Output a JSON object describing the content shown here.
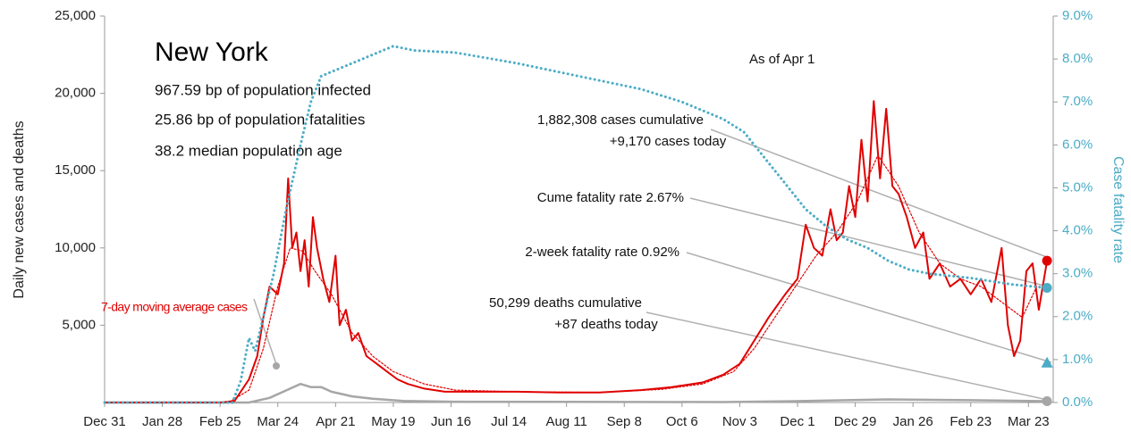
{
  "chart_data": {
    "type": "line",
    "title": "New York",
    "stats": [
      "967.59 bp of population infected",
      "25.86 bp of population fatalities",
      "38.2 median population age"
    ],
    "ylabel": "Daily new cases and deaths",
    "y2label": "Case fatality rate",
    "annotations": [
      {
        "lines": [
          "As of Apr 1"
        ]
      },
      {
        "lines": [
          "1,882,308 cases cumulative",
          "+9,170 cases today"
        ]
      },
      {
        "lines": [
          "Cume fatality rate 2.67%"
        ]
      },
      {
        "lines": [
          "2-week fatality rate 0.92%"
        ]
      },
      {
        "lines": [
          "50,299 deaths cumulative",
          "+87 deaths today"
        ]
      }
    ],
    "xlim": [
      0,
      460
    ],
    "xticks": [
      {
        "value": 0,
        "label": "Dec 31"
      },
      {
        "value": 28,
        "label": "Jan 28"
      },
      {
        "value": 56,
        "label": "Feb 25"
      },
      {
        "value": 84,
        "label": "Mar 24"
      },
      {
        "value": 112,
        "label": "Apr 21"
      },
      {
        "value": 140,
        "label": "May 19"
      },
      {
        "value": 168,
        "label": "Jun 16"
      },
      {
        "value": 196,
        "label": "Jul 14"
      },
      {
        "value": 224,
        "label": "Aug 11"
      },
      {
        "value": 252,
        "label": "Sep 8"
      },
      {
        "value": 280,
        "label": "Oct 6"
      },
      {
        "value": 308,
        "label": "Nov 3"
      },
      {
        "value": 336,
        "label": "Dec 1"
      },
      {
        "value": 364,
        "label": "Dec 29"
      },
      {
        "value": 392,
        "label": "Jan 26"
      },
      {
        "value": 420,
        "label": "Feb 23"
      },
      {
        "value": 448,
        "label": "Mar 23"
      }
    ],
    "ylim": [
      0,
      25000
    ],
    "yticks": [
      {
        "value": 5000,
        "label": "5,000"
      },
      {
        "value": 10000,
        "label": "10,000"
      },
      {
        "value": 15000,
        "label": "15,000"
      },
      {
        "value": 20000,
        "label": "20,000"
      },
      {
        "value": 25000,
        "label": "25,000"
      }
    ],
    "y2lim": [
      0,
      9
    ],
    "y2ticks": [
      {
        "value": 0,
        "label": "0.0%"
      },
      {
        "value": 1,
        "label": "1.0%"
      },
      {
        "value": 2,
        "label": "2.0%"
      },
      {
        "value": 3,
        "label": "3.0%"
      },
      {
        "value": 4,
        "label": "4.0%"
      },
      {
        "value": 5,
        "label": "5.0%"
      },
      {
        "value": 6,
        "label": "6.0%"
      },
      {
        "value": 7,
        "label": "7.0%"
      },
      {
        "value": 8,
        "label": "8.0%"
      },
      {
        "value": 9,
        "label": "9.0%"
      }
    ],
    "series": [
      {
        "color": "#a6a6a6",
        "style": "solid",
        "width": 2.5,
        "axis": "y",
        "x": [
          0,
          70,
          80,
          90,
          95,
          100,
          105,
          110,
          120,
          130,
          145,
          170,
          300,
          340,
          380,
          420,
          457
        ],
        "values": [
          0,
          0,
          300,
          900,
          1200,
          1000,
          1000,
          700,
          400,
          250,
          100,
          50,
          30,
          100,
          200,
          150,
          87
        ],
        "end_marker": "circle"
      },
      {
        "name": "7-day moving average cases",
        "color": "#e00000",
        "style": "dotted",
        "width": 1.2,
        "axis": "y",
        "x": [
          0,
          60,
          70,
          77,
          84,
          90,
          96,
          102,
          110,
          120,
          130,
          140,
          155,
          170,
          200,
          240,
          270,
          290,
          305,
          315,
          325,
          335,
          345,
          355,
          365,
          375,
          385,
          395,
          405,
          415,
          425,
          435,
          445,
          452
        ],
        "values": [
          0,
          0,
          800,
          3500,
          7500,
          10000,
          9800,
          8500,
          7000,
          4500,
          3000,
          2000,
          1200,
          800,
          700,
          650,
          850,
          1200,
          2000,
          3500,
          5500,
          7500,
          9500,
          11000,
          13000,
          16000,
          14000,
          11000,
          9000,
          8000,
          7500,
          6500,
          5500,
          7500
        ]
      },
      {
        "color": "#e00000",
        "style": "solid",
        "width": 2,
        "axis": "y",
        "x": [
          0,
          56,
          63,
          70,
          74,
          77,
          80,
          84,
          87,
          89,
          91,
          93,
          95,
          97,
          99,
          101,
          103,
          106,
          109,
          112,
          114,
          117,
          120,
          123,
          127,
          132,
          137,
          142,
          147,
          155,
          165,
          180,
          200,
          220,
          240,
          260,
          275,
          290,
          300,
          308,
          315,
          322,
          330,
          336,
          340,
          344,
          348,
          352,
          355,
          358,
          361,
          364,
          367,
          370,
          373,
          376,
          379,
          382,
          385,
          389,
          393,
          397,
          400,
          405,
          410,
          415,
          420,
          425,
          430,
          435,
          438,
          441,
          444,
          447,
          450,
          453,
          457
        ],
        "values": [
          0,
          0,
          100,
          1500,
          3000,
          5500,
          7500,
          7000,
          9000,
          14500,
          10000,
          11000,
          8500,
          10500,
          7500,
          12000,
          10000,
          8000,
          6500,
          9500,
          5000,
          6000,
          4000,
          4500,
          3000,
          2500,
          2000,
          1500,
          1200,
          900,
          700,
          700,
          700,
          650,
          650,
          800,
          1000,
          1300,
          1800,
          2500,
          4000,
          5500,
          7000,
          8000,
          11500,
          10000,
          9500,
          12500,
          10500,
          11000,
          14000,
          12000,
          17000,
          13000,
          19500,
          14500,
          19000,
          14000,
          13500,
          12000,
          10000,
          11000,
          8000,
          9000,
          7500,
          8000,
          7000,
          8000,
          6500,
          10000,
          5000,
          3000,
          4000,
          8500,
          9000,
          6000,
          9170
        ],
        "end_marker": "circle"
      },
      {
        "color": "#4bacc6",
        "style": "dotted",
        "width": 3,
        "axis": "y2",
        "x": [
          0,
          62,
          66,
          70,
          73,
          77,
          82,
          88,
          95,
          100,
          105,
          110,
          120,
          130,
          140,
          150,
          170,
          200,
          230,
          260,
          280,
          300,
          310,
          320,
          330,
          340,
          350,
          360,
          370,
          380,
          390,
          400,
          420,
          440,
          457
        ],
        "values": [
          0,
          0,
          0.5,
          1.5,
          1.2,
          2.0,
          3.0,
          4.5,
          6.0,
          7.0,
          7.6,
          7.7,
          7.9,
          8.1,
          8.3,
          8.2,
          8.15,
          7.9,
          7.6,
          7.3,
          7.0,
          6.6,
          6.3,
          5.7,
          5.1,
          4.5,
          4.1,
          3.8,
          3.6,
          3.3,
          3.1,
          3.0,
          2.9,
          2.75,
          2.67
        ],
        "end_marker": "circle"
      },
      {
        "color": "#4bacc6",
        "style": "solid",
        "width": 0,
        "axis": "y2",
        "x": [
          457
        ],
        "values": [
          0.92
        ],
        "end_marker": "triangle"
      }
    ]
  }
}
